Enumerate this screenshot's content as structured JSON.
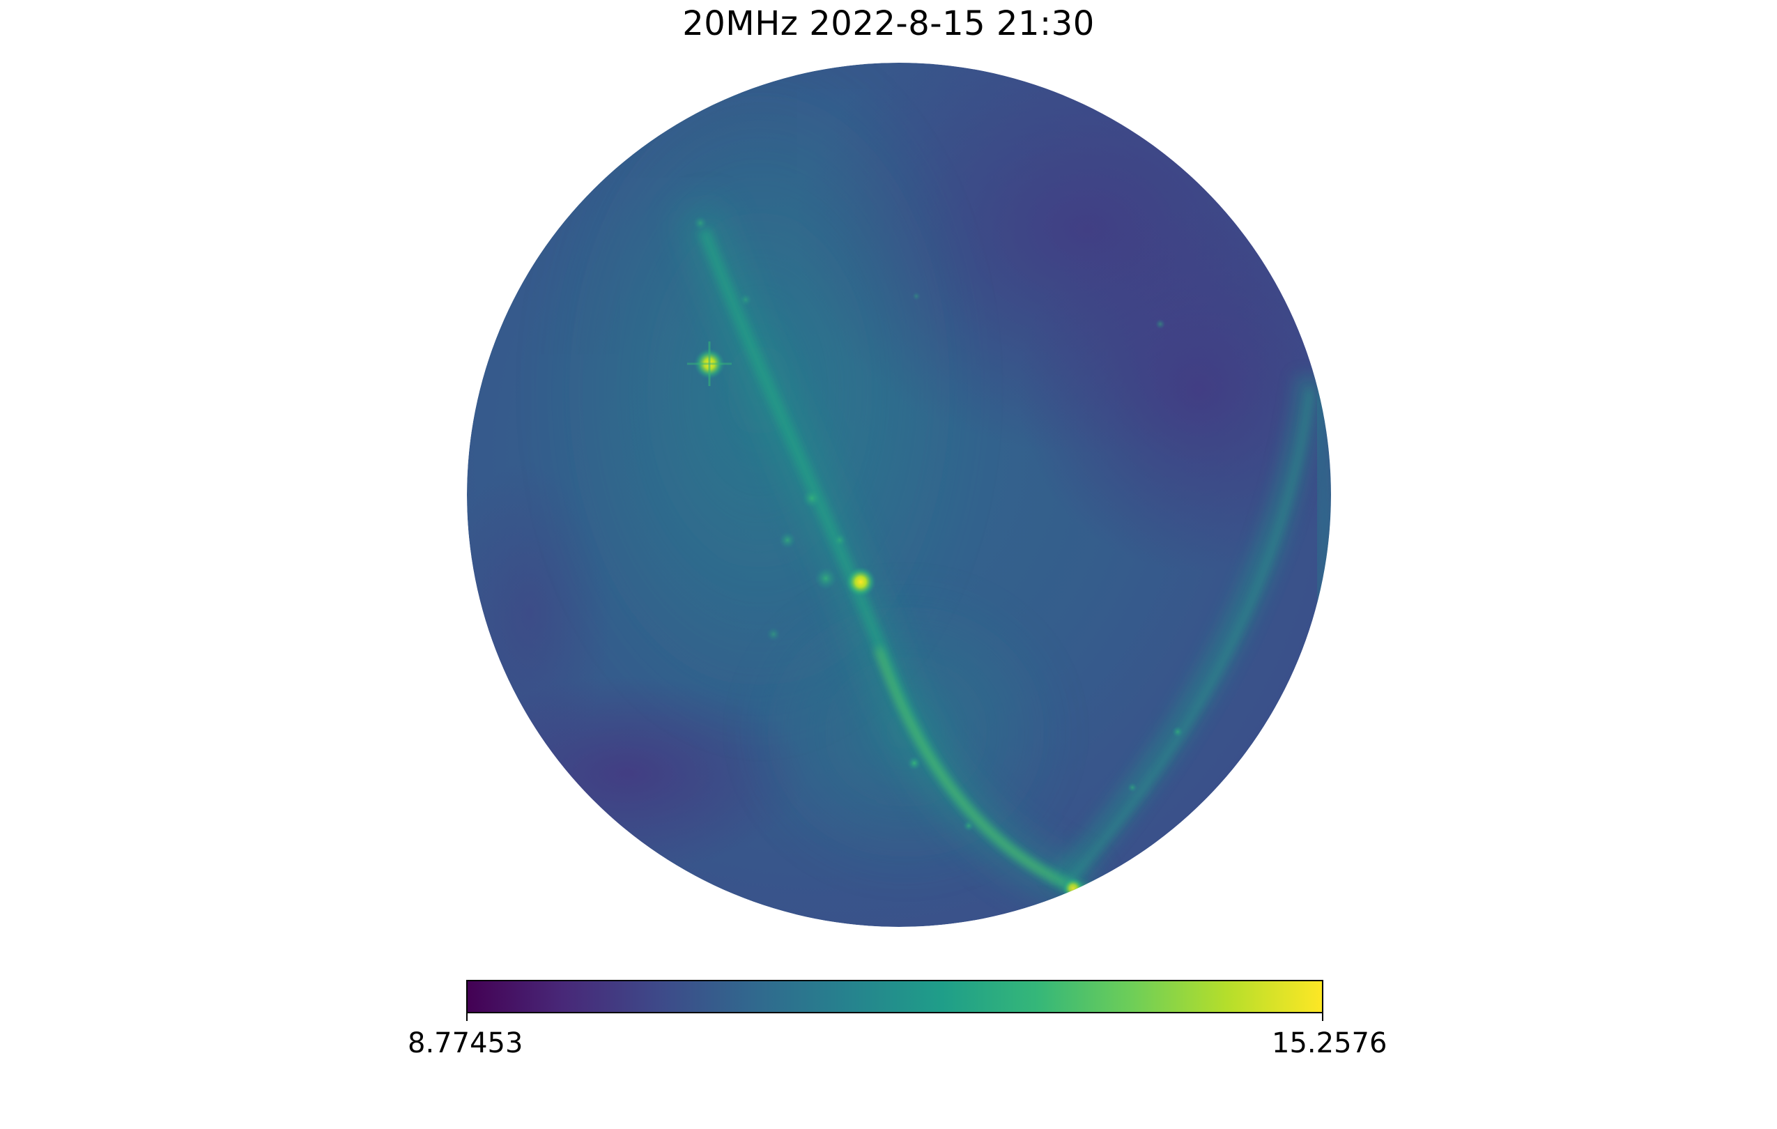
{
  "figure": {
    "title": "20MHz 2022-8-15 21:30"
  },
  "colorbar": {
    "colormap": "viridis",
    "min_label": "8.77453",
    "max_label": "15.2576",
    "min_value": 8.77453,
    "max_value": 15.2576,
    "stops": [
      "#440154",
      "#482878",
      "#3e4989",
      "#31688e",
      "#26828e",
      "#1f9e89",
      "#35b779",
      "#6ece58",
      "#b5de2b",
      "#fde725"
    ]
  },
  "sky_map": {
    "projection": "orthographic all-sky",
    "background_color": "#3b528b",
    "features": [
      "galactic-plane-band",
      "bright-radio-source-1",
      "bright-radio-source-2"
    ]
  }
}
